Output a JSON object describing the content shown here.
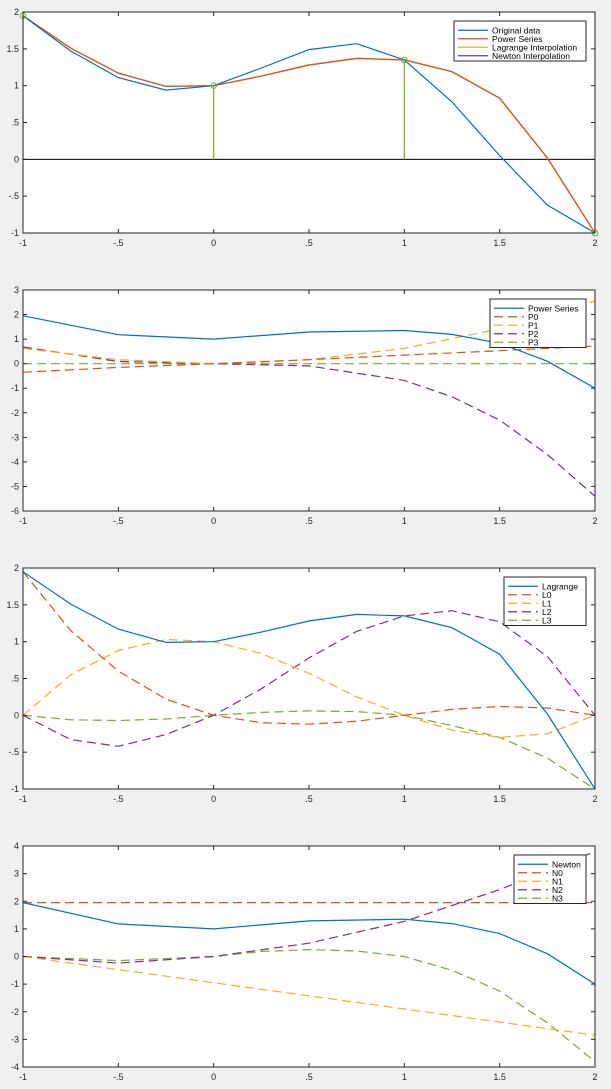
{
  "colors": {
    "figure_bg": "#f0f0f0",
    "axes_bg": "#ffffff",
    "blue": "#0072bd",
    "orange": "#d95319",
    "yellow": "#edb120",
    "purple": "#7e2f8e",
    "green": "#77ac30"
  },
  "chart_data": [
    {
      "type": "line",
      "title": "",
      "xlabel": "",
      "ylabel": "",
      "xlim": [
        -1,
        2
      ],
      "ylim": [
        -1,
        2
      ],
      "xticks": [
        -1,
        -0.5,
        0,
        0.5,
        1,
        1.5,
        2
      ],
      "yticks": [
        -1,
        -0.5,
        0,
        0.5,
        1,
        1.5,
        2
      ],
      "grid": false,
      "legend_position": "top-right",
      "zero_line": true,
      "series": [
        {
          "name": "Original data",
          "color": "blue",
          "dash": false,
          "x": [
            -1,
            -0.75,
            -0.5,
            -0.25,
            0,
            0.25,
            0.5,
            0.75,
            1,
            1.25,
            1.5,
            1.75,
            2
          ],
          "y": [
            1.95,
            1.47,
            1.11,
            0.94,
            1.0,
            1.24,
            1.49,
            1.57,
            1.35,
            0.78,
            0.05,
            -0.62,
            -1.0
          ]
        },
        {
          "name": "Power Series",
          "color": "orange",
          "dash": false,
          "x": [
            -1,
            -0.75,
            -0.5,
            -0.25,
            0,
            0.25,
            0.5,
            0.75,
            1,
            1.25,
            1.5,
            1.75,
            2
          ],
          "y": [
            1.95,
            1.51,
            1.17,
            0.99,
            1.0,
            1.13,
            1.28,
            1.37,
            1.35,
            1.19,
            0.83,
            0.02,
            -1.0
          ]
        },
        {
          "name": "Lagrange Interpolation",
          "color": "yellow",
          "dash": false,
          "x": [
            -1,
            -0.75,
            -0.5,
            -0.25,
            0,
            0.25,
            0.5,
            0.75,
            1,
            1.25,
            1.5,
            1.75,
            2
          ],
          "y": [
            1.95,
            1.51,
            1.17,
            0.99,
            1.0,
            1.13,
            1.28,
            1.37,
            1.35,
            1.19,
            0.83,
            0.02,
            -1.0
          ]
        },
        {
          "name": "Newton Interpolation",
          "color": "purple",
          "dash": false,
          "x": [
            -1,
            -0.75,
            -0.5,
            -0.25,
            0,
            0.25,
            0.5,
            0.75,
            1,
            1.25,
            1.5,
            1.75,
            2
          ],
          "y": [
            1.95,
            1.51,
            1.17,
            0.99,
            1.0,
            1.13,
            1.28,
            1.37,
            1.35,
            1.19,
            0.83,
            0.02,
            -1.0
          ]
        }
      ],
      "stems": {
        "color": "green",
        "x": [
          -1,
          0,
          1,
          2
        ],
        "y": [
          1.95,
          1.0,
          1.35,
          -1.0
        ]
      }
    },
    {
      "type": "line",
      "title": "",
      "xlabel": "",
      "ylabel": "",
      "xlim": [
        -1,
        2
      ],
      "ylim": [
        -6,
        3
      ],
      "xticks": [
        -1,
        -0.5,
        0,
        0.5,
        1,
        1.5,
        2
      ],
      "yticks": [
        -6,
        -5,
        -4,
        -3,
        -2,
        -1,
        0,
        1,
        2,
        3
      ],
      "grid": false,
      "legend_position": "top-right",
      "series": [
        {
          "name": "Power Series",
          "color": "blue",
          "dash": false,
          "x": [
            -1,
            -0.5,
            0,
            0.5,
            1,
            1.25,
            1.5,
            1.75,
            2
          ],
          "y": [
            1.95,
            1.18,
            1.0,
            1.29,
            1.35,
            1.19,
            0.83,
            0.1,
            -1.0
          ]
        },
        {
          "name": "P0",
          "color": "orange",
          "dash": true,
          "x": [
            -1,
            -0.5,
            0,
            0.5,
            1,
            1.5,
            2
          ],
          "y": [
            -0.35,
            -0.15,
            0.0,
            0.16,
            0.35,
            0.53,
            0.72
          ]
        },
        {
          "name": "P1",
          "color": "yellow",
          "dash": true,
          "x": [
            -1,
            -0.5,
            0,
            0.5,
            1,
            1.5,
            2
          ],
          "y": [
            0.62,
            0.16,
            0.0,
            0.16,
            0.62,
            1.42,
            2.55
          ]
        },
        {
          "name": "P2",
          "color": "purple",
          "dash": true,
          "x": [
            -1,
            -0.5,
            0,
            0.5,
            1,
            1.25,
            1.5,
            1.75,
            2
          ],
          "y": [
            0.68,
            0.09,
            0.0,
            -0.09,
            -0.68,
            -1.35,
            -2.3,
            -3.7,
            -5.4
          ]
        },
        {
          "name": "P3",
          "color": "green",
          "dash": true,
          "x": [
            -1,
            2
          ],
          "y": [
            0.0,
            0.0
          ]
        }
      ]
    },
    {
      "type": "line",
      "title": "",
      "xlabel": "",
      "ylabel": "",
      "xlim": [
        -1,
        2
      ],
      "ylim": [
        -1,
        2
      ],
      "xticks": [
        -1,
        -0.5,
        0,
        0.5,
        1,
        1.5,
        2
      ],
      "yticks": [
        -1,
        -0.5,
        0,
        0.5,
        1,
        1.5,
        2
      ],
      "grid": false,
      "legend_position": "top-right",
      "series": [
        {
          "name": "Lagrange",
          "color": "blue",
          "dash": false,
          "x": [
            -1,
            -0.75,
            -0.5,
            -0.25,
            0,
            0.25,
            0.5,
            0.75,
            1,
            1.25,
            1.5,
            1.75,
            2
          ],
          "y": [
            1.95,
            1.51,
            1.17,
            0.99,
            1.0,
            1.13,
            1.28,
            1.37,
            1.35,
            1.19,
            0.83,
            0.02,
            -1.0
          ]
        },
        {
          "name": "L0",
          "color": "orange",
          "dash": true,
          "x": [
            -1,
            -0.75,
            -0.5,
            -0.25,
            0,
            0.25,
            0.5,
            0.75,
            1,
            1.25,
            1.5,
            1.75,
            2
          ],
          "y": [
            1.95,
            1.15,
            0.6,
            0.22,
            0.0,
            -0.1,
            -0.12,
            -0.08,
            0.0,
            0.08,
            0.12,
            0.1,
            0.0
          ]
        },
        {
          "name": "L1",
          "color": "yellow",
          "dash": true,
          "x": [
            -1,
            -0.75,
            -0.5,
            -0.25,
            0,
            0.25,
            0.5,
            0.75,
            1,
            1.25,
            1.5,
            1.75,
            2
          ],
          "y": [
            0.0,
            0.55,
            0.88,
            1.03,
            1.0,
            0.84,
            0.57,
            0.25,
            0.0,
            -0.2,
            -0.3,
            -0.25,
            0.0
          ]
        },
        {
          "name": "L2",
          "color": "purple",
          "dash": true,
          "x": [
            -1,
            -0.75,
            -0.5,
            -0.25,
            0,
            0.25,
            0.5,
            0.75,
            1,
            1.25,
            1.5,
            1.75,
            2
          ],
          "y": [
            0.0,
            -0.33,
            -0.42,
            -0.26,
            0.0,
            0.36,
            0.78,
            1.14,
            1.35,
            1.42,
            1.27,
            0.8,
            0.0
          ]
        },
        {
          "name": "L3",
          "color": "green",
          "dash": true,
          "x": [
            -1,
            -0.75,
            -0.5,
            -0.25,
            0,
            0.25,
            0.5,
            0.75,
            1,
            1.25,
            1.5,
            1.75,
            2
          ],
          "y": [
            0.0,
            -0.06,
            -0.07,
            -0.05,
            0.0,
            0.04,
            0.06,
            0.05,
            0.0,
            -0.14,
            -0.3,
            -0.58,
            -1.0
          ]
        }
      ]
    },
    {
      "type": "line",
      "title": "",
      "xlabel": "",
      "ylabel": "",
      "xlim": [
        -1,
        2
      ],
      "ylim": [
        -4,
        4
      ],
      "xticks": [
        -1,
        -0.5,
        0,
        0.5,
        1,
        1.5,
        2
      ],
      "yticks": [
        -4,
        -3,
        -2,
        -1,
        0,
        1,
        2,
        3,
        4
      ],
      "grid": false,
      "legend_position": "top-right",
      "series": [
        {
          "name": "Newton",
          "color": "blue",
          "dash": false,
          "x": [
            -1,
            -0.5,
            0,
            0.5,
            1,
            1.25,
            1.5,
            1.75,
            2
          ],
          "y": [
            1.95,
            1.18,
            1.0,
            1.29,
            1.35,
            1.19,
            0.83,
            0.1,
            -1.0
          ]
        },
        {
          "name": "N0",
          "color": "orange",
          "dash": true,
          "x": [
            -1,
            2
          ],
          "y": [
            1.95,
            1.95
          ]
        },
        {
          "name": "N1",
          "color": "yellow",
          "dash": true,
          "x": [
            -1,
            2
          ],
          "y": [
            0.0,
            -2.85
          ]
        },
        {
          "name": "N2",
          "color": "purple",
          "dash": true,
          "x": [
            -1,
            -0.5,
            0,
            0.5,
            1,
            1.5,
            2
          ],
          "y": [
            0.0,
            -0.24,
            0.0,
            0.48,
            1.27,
            2.42,
            3.8
          ]
        },
        {
          "name": "N3",
          "color": "green",
          "dash": true,
          "x": [
            -1,
            -0.5,
            0,
            0.25,
            0.5,
            0.75,
            1,
            1.25,
            1.5,
            1.75,
            2
          ],
          "y": [
            0.0,
            -0.15,
            0.0,
            0.18,
            0.25,
            0.2,
            0.0,
            -0.5,
            -1.25,
            -2.4,
            -3.8
          ]
        }
      ]
    }
  ]
}
